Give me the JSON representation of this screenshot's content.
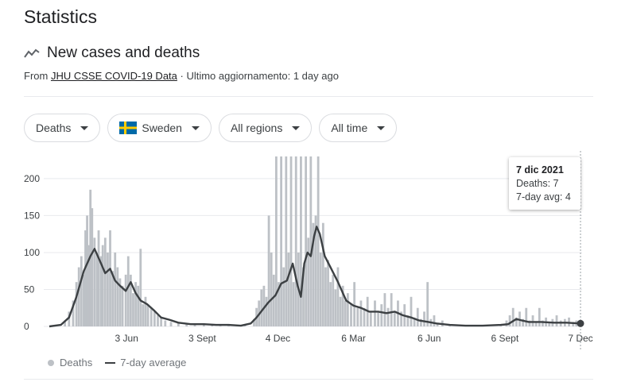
{
  "page": {
    "title": "Statistics"
  },
  "card": {
    "title": "New cases and deaths",
    "source_prefix": "From ",
    "source_link": "JHU CSSE COVID-19 Data",
    "updated": " · Ultimo aggiornamento: 1 day ago"
  },
  "filters": {
    "metric": "Deaths",
    "country": "Sweden",
    "region": "All regions",
    "time": "All time"
  },
  "tooltip": {
    "date": "7 dic 2021",
    "deaths": "Deaths: 7",
    "avg": "7-day avg: 4"
  },
  "legend": {
    "bars": "Deaths",
    "line": "7-day average"
  },
  "colors": {
    "bars": "#bdc1c6",
    "line": "#3c4043",
    "grid": "#e8eaed",
    "flag_blue": "#006aa7",
    "flag_yellow": "#fecc00"
  },
  "icons": {
    "trend": "trending-icon",
    "flag": "sweden-flag-icon"
  },
  "chart_data": {
    "type": "bar",
    "x_start": "2020-03-01",
    "x_end": "2021-12-07",
    "y_ticks": [
      "0",
      "50",
      "100",
      "150",
      "200"
    ],
    "ylim": [
      0,
      230
    ],
    "x_tick_labels": [
      {
        "date": "2020-06-03",
        "label": "3 Jun"
      },
      {
        "date": "2020-09-03",
        "label": "3 Sept"
      },
      {
        "date": "2020-12-04",
        "label": "4 Dec"
      },
      {
        "date": "2021-03-06",
        "label": "6 Mar"
      },
      {
        "date": "2021-06-06",
        "label": "6 Jun"
      },
      {
        "date": "2021-09-06",
        "label": "6 Sept"
      },
      {
        "date": "2021-12-07",
        "label": "7 Dec"
      }
    ],
    "series": [
      {
        "name": "7-day average",
        "points": [
          [
            "2020-03-01",
            0
          ],
          [
            "2020-03-15",
            2
          ],
          [
            "2020-03-25",
            12
          ],
          [
            "2020-04-03",
            40
          ],
          [
            "2020-04-12",
            75
          ],
          [
            "2020-04-20",
            95
          ],
          [
            "2020-04-25",
            105
          ],
          [
            "2020-05-01",
            90
          ],
          [
            "2020-05-08",
            72
          ],
          [
            "2020-05-14",
            78
          ],
          [
            "2020-05-20",
            62
          ],
          [
            "2020-05-26",
            55
          ],
          [
            "2020-06-02",
            48
          ],
          [
            "2020-06-08",
            60
          ],
          [
            "2020-06-14",
            45
          ],
          [
            "2020-06-20",
            35
          ],
          [
            "2020-06-28",
            30
          ],
          [
            "2020-07-06",
            22
          ],
          [
            "2020-07-15",
            12
          ],
          [
            "2020-07-25",
            9
          ],
          [
            "2020-08-05",
            5
          ],
          [
            "2020-08-20",
            3
          ],
          [
            "2020-09-05",
            3
          ],
          [
            "2020-09-20",
            2
          ],
          [
            "2020-10-05",
            2
          ],
          [
            "2020-10-20",
            1
          ],
          [
            "2020-11-01",
            4
          ],
          [
            "2020-11-08",
            12
          ],
          [
            "2020-11-15",
            22
          ],
          [
            "2020-11-22",
            32
          ],
          [
            "2020-12-01",
            42
          ],
          [
            "2020-12-08",
            58
          ],
          [
            "2020-12-15",
            62
          ],
          [
            "2020-12-22",
            85
          ],
          [
            "2020-12-28",
            55
          ],
          [
            "2021-01-01",
            40
          ],
          [
            "2021-01-05",
            85
          ],
          [
            "2021-01-09",
            100
          ],
          [
            "2021-01-13",
            95
          ],
          [
            "2021-01-17",
            122
          ],
          [
            "2021-01-20",
            135
          ],
          [
            "2021-01-24",
            125
          ],
          [
            "2021-01-30",
            95
          ],
          [
            "2021-02-06",
            80
          ],
          [
            "2021-02-15",
            60
          ],
          [
            "2021-02-25",
            35
          ],
          [
            "2021-03-06",
            28
          ],
          [
            "2021-03-15",
            25
          ],
          [
            "2021-03-25",
            20
          ],
          [
            "2021-04-05",
            20
          ],
          [
            "2021-04-15",
            18
          ],
          [
            "2021-04-25",
            20
          ],
          [
            "2021-05-05",
            15
          ],
          [
            "2021-05-15",
            12
          ],
          [
            "2021-05-25",
            8
          ],
          [
            "2021-06-05",
            6
          ],
          [
            "2021-06-15",
            4
          ],
          [
            "2021-07-01",
            2
          ],
          [
            "2021-07-20",
            1
          ],
          [
            "2021-08-10",
            1
          ],
          [
            "2021-09-01",
            2
          ],
          [
            "2021-09-10",
            3
          ],
          [
            "2021-09-20",
            10
          ],
          [
            "2021-09-27",
            8
          ],
          [
            "2021-10-05",
            6
          ],
          [
            "2021-10-20",
            6
          ],
          [
            "2021-11-05",
            5
          ],
          [
            "2021-11-20",
            5
          ],
          [
            "2021-12-07",
            4
          ]
        ]
      },
      {
        "name": "Deaths",
        "bars": [
          [
            "2020-03-20",
            8
          ],
          [
            "2020-03-25",
            20
          ],
          [
            "2020-03-30",
            35
          ],
          [
            "2020-04-03",
            60
          ],
          [
            "2020-04-06",
            80
          ],
          [
            "2020-04-09",
            95
          ],
          [
            "2020-04-12",
            70
          ],
          [
            "2020-04-14",
            130
          ],
          [
            "2020-04-16",
            150
          ],
          [
            "2020-04-18",
            110
          ],
          [
            "2020-04-20",
            185
          ],
          [
            "2020-04-22",
            160
          ],
          [
            "2020-04-25",
            120
          ],
          [
            "2020-04-28",
            100
          ],
          [
            "2020-04-30",
            130
          ],
          [
            "2020-05-03",
            95
          ],
          [
            "2020-05-05",
            110
          ],
          [
            "2020-05-08",
            120
          ],
          [
            "2020-05-11",
            100
          ],
          [
            "2020-05-14",
            130
          ],
          [
            "2020-05-17",
            75
          ],
          [
            "2020-05-20",
            100
          ],
          [
            "2020-05-23",
            80
          ],
          [
            "2020-05-26",
            65
          ],
          [
            "2020-05-29",
            55
          ],
          [
            "2020-06-02",
            70
          ],
          [
            "2020-06-05",
            95
          ],
          [
            "2020-06-08",
            70
          ],
          [
            "2020-06-11",
            45
          ],
          [
            "2020-06-14",
            60
          ],
          [
            "2020-06-17",
            55
          ],
          [
            "2020-06-20",
            105
          ],
          [
            "2020-06-23",
            30
          ],
          [
            "2020-06-26",
            40
          ],
          [
            "2020-06-29",
            30
          ],
          [
            "2020-07-03",
            25
          ],
          [
            "2020-07-07",
            20
          ],
          [
            "2020-07-11",
            15
          ],
          [
            "2020-07-15",
            12
          ],
          [
            "2020-07-20",
            8
          ],
          [
            "2020-07-27",
            6
          ],
          [
            "2020-08-05",
            5
          ],
          [
            "2020-08-15",
            4
          ],
          [
            "2020-08-25",
            3
          ],
          [
            "2020-09-05",
            3
          ],
          [
            "2020-09-15",
            3
          ],
          [
            "2020-09-25",
            2
          ],
          [
            "2020-10-05",
            2
          ],
          [
            "2020-10-15",
            2
          ],
          [
            "2020-10-25",
            3
          ],
          [
            "2020-11-05",
            10
          ],
          [
            "2020-11-08",
            25
          ],
          [
            "2020-11-11",
            35
          ],
          [
            "2020-11-14",
            50
          ],
          [
            "2020-11-17",
            55
          ],
          [
            "2020-11-20",
            40
          ],
          [
            "2020-11-23",
            150
          ],
          [
            "2020-11-26",
            100
          ],
          [
            "2020-11-29",
            70
          ],
          [
            "2020-12-02",
            230
          ],
          [
            "2020-12-05",
            60
          ],
          [
            "2020-12-08",
            230
          ],
          [
            "2020-12-11",
            80
          ],
          [
            "2020-12-14",
            230
          ],
          [
            "2020-12-17",
            100
          ],
          [
            "2020-12-20",
            230
          ],
          [
            "2020-12-23",
            60
          ],
          [
            "2020-12-26",
            230
          ],
          [
            "2020-12-29",
            100
          ],
          [
            "2021-01-01",
            230
          ],
          [
            "2021-01-04",
            80
          ],
          [
            "2021-01-07",
            230
          ],
          [
            "2021-01-10",
            120
          ],
          [
            "2021-01-13",
            230
          ],
          [
            "2021-01-16",
            140
          ],
          [
            "2021-01-19",
            150
          ],
          [
            "2021-01-22",
            230
          ],
          [
            "2021-01-25",
            100
          ],
          [
            "2021-01-28",
            140
          ],
          [
            "2021-01-31",
            80
          ],
          [
            "2021-02-03",
            90
          ],
          [
            "2021-02-06",
            60
          ],
          [
            "2021-02-09",
            70
          ],
          [
            "2021-02-12",
            50
          ],
          [
            "2021-02-15",
            80
          ],
          [
            "2021-02-18",
            40
          ],
          [
            "2021-02-21",
            55
          ],
          [
            "2021-02-24",
            35
          ],
          [
            "2021-02-27",
            45
          ],
          [
            "2021-03-03",
            30
          ],
          [
            "2021-03-07",
            60
          ],
          [
            "2021-03-11",
            25
          ],
          [
            "2021-03-15",
            35
          ],
          [
            "2021-03-19",
            25
          ],
          [
            "2021-03-23",
            40
          ],
          [
            "2021-03-27",
            20
          ],
          [
            "2021-04-01",
            35
          ],
          [
            "2021-04-05",
            20
          ],
          [
            "2021-04-09",
            30
          ],
          [
            "2021-04-13",
            45
          ],
          [
            "2021-04-17",
            25
          ],
          [
            "2021-04-21",
            45
          ],
          [
            "2021-04-25",
            20
          ],
          [
            "2021-04-29",
            35
          ],
          [
            "2021-05-03",
            20
          ],
          [
            "2021-05-07",
            30
          ],
          [
            "2021-05-11",
            15
          ],
          [
            "2021-05-15",
            40
          ],
          [
            "2021-05-19",
            12
          ],
          [
            "2021-05-23",
            25
          ],
          [
            "2021-05-27",
            10
          ],
          [
            "2021-05-31",
            20
          ],
          [
            "2021-06-04",
            60
          ],
          [
            "2021-06-08",
            10
          ],
          [
            "2021-06-12",
            15
          ],
          [
            "2021-06-16",
            5
          ],
          [
            "2021-06-22",
            8
          ],
          [
            "2021-07-01",
            3
          ],
          [
            "2021-07-15",
            2
          ],
          [
            "2021-08-01",
            2
          ],
          [
            "2021-08-15",
            2
          ],
          [
            "2021-09-01",
            3
          ],
          [
            "2021-09-08",
            8
          ],
          [
            "2021-09-12",
            15
          ],
          [
            "2021-09-16",
            25
          ],
          [
            "2021-09-20",
            12
          ],
          [
            "2021-09-24",
            20
          ],
          [
            "2021-09-28",
            10
          ],
          [
            "2021-10-02",
            25
          ],
          [
            "2021-10-06",
            8
          ],
          [
            "2021-10-10",
            15
          ],
          [
            "2021-10-14",
            6
          ],
          [
            "2021-10-18",
            25
          ],
          [
            "2021-10-22",
            8
          ],
          [
            "2021-10-26",
            12
          ],
          [
            "2021-10-30",
            5
          ],
          [
            "2021-11-03",
            10
          ],
          [
            "2021-11-08",
            15
          ],
          [
            "2021-11-13",
            8
          ],
          [
            "2021-11-18",
            10
          ],
          [
            "2021-11-23",
            12
          ],
          [
            "2021-11-28",
            6
          ],
          [
            "2021-12-02",
            8
          ],
          [
            "2021-12-07",
            7
          ]
        ]
      }
    ],
    "highlight": {
      "date": "2021-12-07",
      "value": 4
    }
  }
}
